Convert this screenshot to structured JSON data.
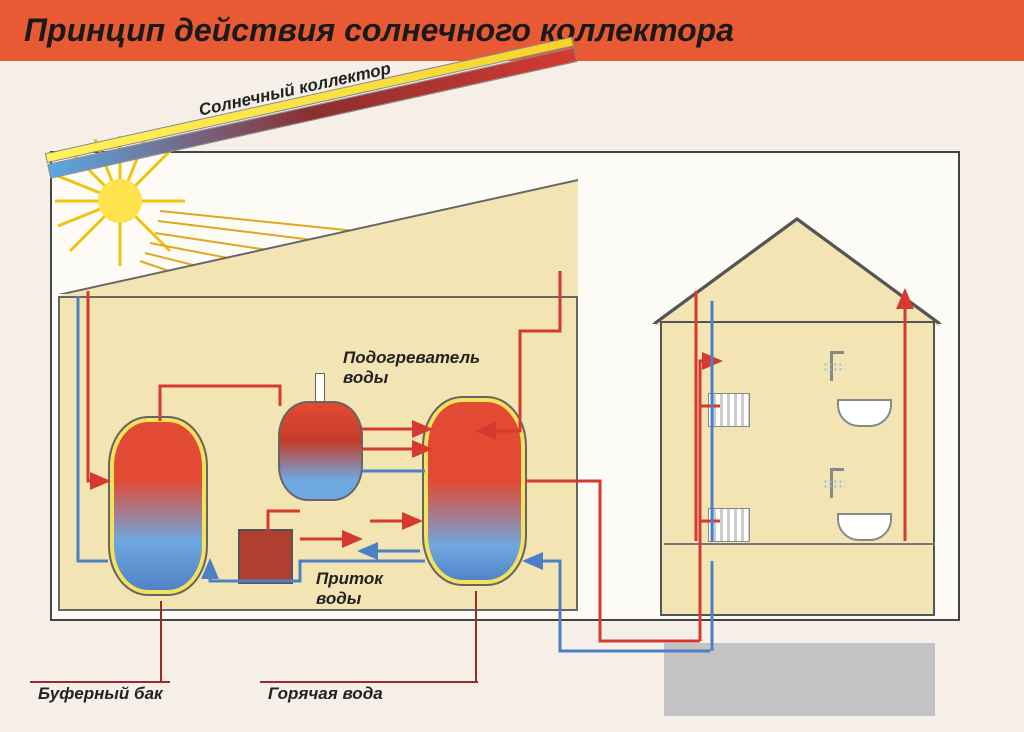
{
  "header": {
    "title": "Принцип действия солнечного коллектора",
    "bg_color": "#e85a33",
    "text_color": "#1a1a1a"
  },
  "diagram": {
    "type": "infographic",
    "background_color": "#f5efe8",
    "frame_border_color": "#444444",
    "building_fill": "#f3e4b3",
    "collector": {
      "label": "Солнечный коллектор",
      "top_color": "#f9d22a",
      "gradient_colors": [
        "#5aa8e6",
        "#8a2f2f",
        "#d63a2f"
      ],
      "angle_deg": -12.5
    },
    "sun": {
      "color": "#ffe34d",
      "ray_color": "#f1c40f",
      "rays": 16
    },
    "sun_ray_arrows": {
      "color": "#e0a820",
      "count": 6
    },
    "tanks": {
      "buffer": {
        "gradient": [
          "#e24a33",
          "#6fa8e0"
        ],
        "outline_glow": "#f6e15a"
      },
      "heater": {
        "gradient": [
          "#e24a33",
          "#6fa8e0"
        ]
      },
      "hot": {
        "gradient": [
          "#e24a33",
          "#6fa8e0"
        ],
        "outline_glow": "#f6e15a"
      },
      "aux_box_color": "#b13f2f"
    },
    "pipes": {
      "hot_color": "#d63a2f",
      "cold_color": "#4d7fc5",
      "stroke_width": 3
    },
    "labels": {
      "heater": "Подогреватель воды",
      "inflow": "Приток воды",
      "buffer_tank": "Буферный бак",
      "hot_water": "Горячая вода",
      "font_size": 17,
      "font_weight": "bold",
      "font_style": "italic",
      "color": "#222222",
      "leader_color": "#962d2d"
    },
    "house": {
      "floors": 2,
      "radiator_count": 2,
      "bathtub_count": 2,
      "basement_color": "#c3c3c3"
    }
  }
}
